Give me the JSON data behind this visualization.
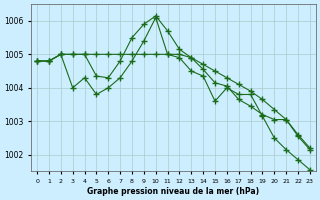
{
  "title": "Graphe pression niveau de la mer (hPa)",
  "background_color": "#cceeff",
  "grid_color": "#aacccc",
  "line_color": "#1a6b1a",
  "x_labels": [
    "0",
    "1",
    "2",
    "3",
    "4",
    "5",
    "6",
    "7",
    "8",
    "9",
    "10",
    "11",
    "12",
    "13",
    "14",
    "15",
    "16",
    "17",
    "18",
    "19",
    "20",
    "21",
    "22",
    "23"
  ],
  "ylim": [
    1001.5,
    1006.5
  ],
  "yticks": [
    1002,
    1003,
    1004,
    1005,
    1006
  ],
  "series1": [
    1004.8,
    1004.8,
    1005.0,
    1004.0,
    1004.3,
    1003.8,
    1004.0,
    1004.3,
    1004.8,
    1005.4,
    1006.1,
    1005.0,
    1004.9,
    1004.5,
    1004.35,
    1003.6,
    1004.0,
    1003.8,
    1003.8,
    1003.15,
    1002.5,
    1002.15,
    1001.85,
    1001.55
  ],
  "series2": [
    1004.8,
    1004.8,
    1005.0,
    1005.0,
    1005.0,
    1004.35,
    1004.3,
    1004.8,
    1005.5,
    1005.9,
    1006.15,
    1005.7,
    1005.15,
    1004.9,
    1004.55,
    1004.15,
    1004.05,
    1003.65,
    1003.45,
    1003.2,
    1003.05,
    1003.05,
    1002.55,
    1002.15
  ],
  "series3": [
    1004.8,
    1004.8,
    1005.0,
    1005.0,
    1005.0,
    1005.0,
    1005.0,
    1005.0,
    1005.0,
    1005.0,
    1005.0,
    1005.0,
    1005.0,
    1004.9,
    1004.7,
    1004.5,
    1004.3,
    1004.1,
    1003.9,
    1003.65,
    1003.35,
    1003.05,
    1002.6,
    1002.2
  ]
}
